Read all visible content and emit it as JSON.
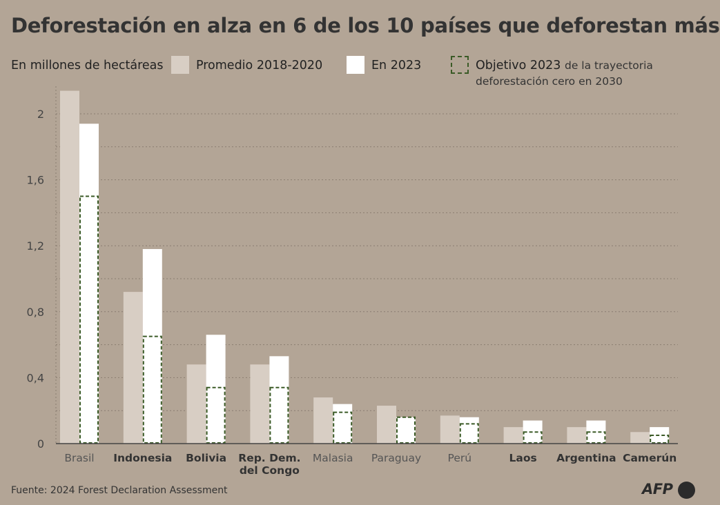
{
  "header": {
    "title": "Deforestación en alza en 6 de los 10 países que deforestan más",
    "unit_label": "En millones de hectáreas"
  },
  "legend": {
    "avg_label": "Promedio 2018-2020",
    "y2023_label": "En 2023",
    "target_label": "Objetivo 2023",
    "target_sub_1": "de la trayectoria",
    "target_sub_2": "deforestación cero en 2030"
  },
  "footer": {
    "source": "Fuente: 2024 Forest Declaration Assessment",
    "logo_text": "AFP"
  },
  "colors": {
    "background": "#b3a596",
    "avg_bar": "#d8cec4",
    "bar_2023": "#ffffff",
    "target_outline": "#3a5a26",
    "grid": "#8a7d70"
  },
  "chart_data": {
    "type": "bar",
    "ylim": [
      0,
      2.1
    ],
    "yticks": [
      "0",
      "0,4",
      "0,8",
      "1,2",
      "1,6",
      "2"
    ],
    "ytick_values": [
      0,
      0.4,
      0.8,
      1.2,
      1.6,
      2.0
    ],
    "grid": true,
    "categories": [
      {
        "lines": [
          "Brasil"
        ],
        "bold": false
      },
      {
        "lines": [
          "Indonesia"
        ],
        "bold": true
      },
      {
        "lines": [
          "Bolivia"
        ],
        "bold": true
      },
      {
        "lines": [
          "Rep. Dem.",
          "del Congo"
        ],
        "bold": true
      },
      {
        "lines": [
          "Malasia"
        ],
        "bold": false
      },
      {
        "lines": [
          "Paraguay"
        ],
        "bold": false
      },
      {
        "lines": [
          "Perú"
        ],
        "bold": false
      },
      {
        "lines": [
          "Laos"
        ],
        "bold": true
      },
      {
        "lines": [
          "Argentina"
        ],
        "bold": true
      },
      {
        "lines": [
          "Camerún"
        ],
        "bold": true
      }
    ],
    "series": [
      {
        "name": "Promedio 2018-2020",
        "values": [
          2.14,
          0.92,
          0.48,
          0.48,
          0.28,
          0.23,
          0.17,
          0.1,
          0.1,
          0.07
        ]
      },
      {
        "name": "En 2023",
        "values": [
          1.94,
          1.18,
          0.66,
          0.53,
          0.24,
          0.16,
          0.16,
          0.14,
          0.14,
          0.1
        ]
      },
      {
        "name": "Objetivo 2023",
        "values": [
          1.5,
          0.65,
          0.34,
          0.34,
          0.19,
          0.16,
          0.12,
          0.07,
          0.07,
          0.05
        ]
      }
    ]
  }
}
